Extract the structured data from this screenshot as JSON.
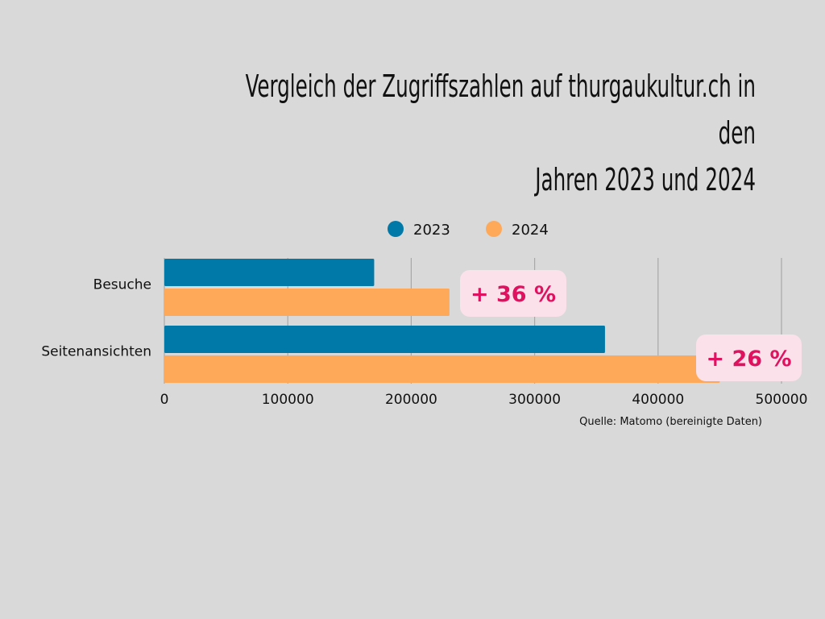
{
  "chart_data": {
    "type": "bar",
    "orientation": "horizontal",
    "title": "Vergleich der Zugriffszahlen auf thurgaukultur.ch in den Jahren 2023 und 2024",
    "title_lines": [
      "Vergleich der Zugriffszahlen auf thurgaukultur.ch in den",
      "Jahren 2023 und 2024"
    ],
    "categories": [
      "Besuche",
      "Seitenansichten"
    ],
    "series": [
      {
        "name": "2023",
        "color": "#0079a8",
        "values": [
          170000,
          357000
        ]
      },
      {
        "name": "2024",
        "color": "#fea95a",
        "values": [
          231000,
          450000
        ]
      }
    ],
    "annotations": [
      {
        "category": "Besuche",
        "text": "+ 36 %"
      },
      {
        "category": "Seitenansichten",
        "text": "+ 26 %"
      }
    ],
    "annotation_style": {
      "background": "#fae1ea",
      "text_color": "#e0115f"
    },
    "xlim": [
      0,
      500000
    ],
    "xticks": [
      0,
      100000,
      200000,
      300000,
      400000,
      500000
    ],
    "xtick_labels": [
      "0",
      "100000",
      "200000",
      "300000",
      "400000",
      "500000"
    ],
    "xlabel": "",
    "ylabel": "",
    "grid": true,
    "legend_position": "top-center",
    "source": "Quelle: Matomo (bereinigte Daten)"
  }
}
